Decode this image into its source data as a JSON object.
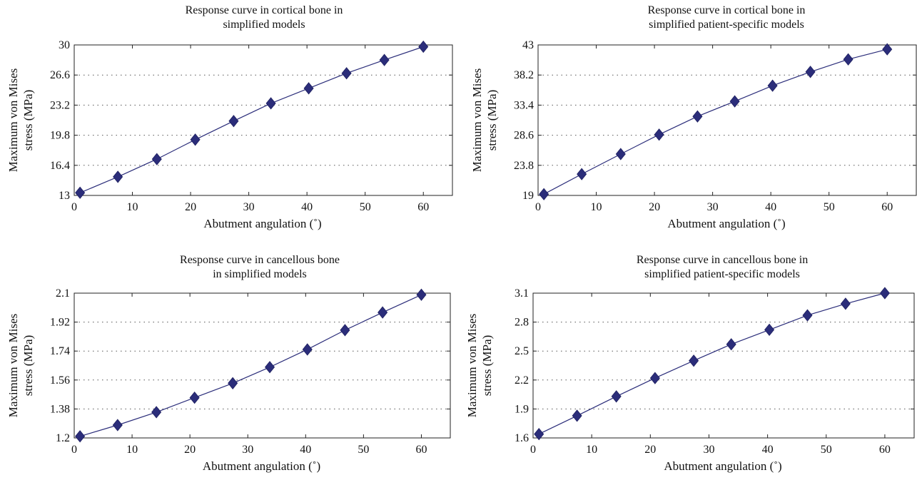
{
  "chart_data": [
    {
      "type": "line",
      "title_lines": [
        "Response curve in cortical bone in",
        "simplified models"
      ],
      "xlabel": "Abutment angulation (˚)",
      "ylabel_lines": [
        "Maximum von Mises",
        "stress (MPa)"
      ],
      "xlim": [
        0,
        65
      ],
      "ylim": [
        13,
        30
      ],
      "xticks": [
        0,
        10,
        20,
        30,
        40,
        50,
        60
      ],
      "yticks": [
        13,
        16.4,
        19.8,
        23.2,
        26.6,
        30
      ],
      "ytick_labels": [
        "13",
        "16.4",
        "19.8",
        "23.2",
        "26.6",
        "30"
      ],
      "grid": "horizontal-dotted",
      "color": "#2b2d7a",
      "marker": "diamond",
      "series": [
        {
          "x": [
            1,
            7.5,
            14.2,
            20.8,
            27.4,
            33.8,
            40.3,
            46.8,
            53.3,
            60
          ],
          "y": [
            13.3,
            15.1,
            17.1,
            19.3,
            21.4,
            23.4,
            25.1,
            26.8,
            28.3,
            29.8
          ]
        }
      ]
    },
    {
      "type": "line",
      "title_lines": [
        "Response curve in cortical bone in",
        "simplified patient-specific models"
      ],
      "xlabel": "Abutment angulation (˚)",
      "ylabel_lines": [
        "Maximum von Mises",
        "stress (MPa)"
      ],
      "xlim": [
        0,
        65
      ],
      "ylim": [
        19,
        43
      ],
      "xticks": [
        0,
        10,
        20,
        30,
        40,
        50,
        60
      ],
      "yticks": [
        19,
        23.8,
        28.6,
        33.4,
        38.2,
        43
      ],
      "ytick_labels": [
        "19",
        "23.8",
        "28.6",
        "33.4",
        "38.2",
        "43"
      ],
      "grid": "horizontal-dotted",
      "color": "#2b2d7a",
      "marker": "diamond",
      "series": [
        {
          "x": [
            1,
            7.5,
            14.2,
            20.8,
            27.4,
            33.8,
            40.3,
            46.8,
            53.3,
            60
          ],
          "y": [
            19.2,
            22.4,
            25.6,
            28.7,
            31.6,
            34.0,
            36.5,
            38.7,
            40.7,
            42.3
          ]
        }
      ]
    },
    {
      "type": "line",
      "title_lines": [
        "Response curve in cancellous bone",
        "in simplified models"
      ],
      "xlabel": "Abutment angulation (˚)",
      "ylabel_lines": [
        "Maximum von Mises",
        "stress (MPa)"
      ],
      "xlim": [
        0,
        65
      ],
      "ylim": [
        1.2,
        2.1
      ],
      "xticks": [
        0,
        10,
        20,
        30,
        40,
        50,
        60
      ],
      "yticks": [
        1.2,
        1.38,
        1.56,
        1.74,
        1.92,
        2.1
      ],
      "ytick_labels": [
        "1.2",
        "1.38",
        "1.56",
        "1.74",
        "1.92",
        "2.1"
      ],
      "grid": "horizontal-dotted",
      "color": "#2b2d7a",
      "marker": "diamond",
      "series": [
        {
          "x": [
            1,
            7.5,
            14.2,
            20.8,
            27.4,
            33.8,
            40.3,
            46.8,
            53.3,
            60
          ],
          "y": [
            1.21,
            1.28,
            1.36,
            1.45,
            1.54,
            1.64,
            1.75,
            1.87,
            1.98,
            2.09
          ]
        }
      ]
    },
    {
      "type": "line",
      "title_lines": [
        "Response curve in cancellous bone in",
        "simplified patient-specific models"
      ],
      "xlabel": "Abutment angulation (˚)",
      "ylabel_lines": [
        "Maximum von Mises",
        "stress (MPa)"
      ],
      "xlim": [
        0,
        65
      ],
      "ylim": [
        1.6,
        3.1
      ],
      "xticks": [
        0,
        10,
        20,
        30,
        40,
        50,
        60
      ],
      "yticks": [
        1.6,
        1.9,
        2.2,
        2.5,
        2.8,
        3.1
      ],
      "ytick_labels": [
        "1.6",
        "1.9",
        "2.2",
        "2.5",
        "2.8",
        "3.1"
      ],
      "grid": "horizontal-dotted",
      "color": "#2b2d7a",
      "marker": "diamond",
      "series": [
        {
          "x": [
            1,
            7.5,
            14.2,
            20.8,
            27.4,
            33.8,
            40.3,
            46.8,
            53.3,
            60
          ],
          "y": [
            1.64,
            1.83,
            2.03,
            2.22,
            2.4,
            2.57,
            2.72,
            2.87,
            2.99,
            3.1
          ]
        }
      ]
    }
  ]
}
